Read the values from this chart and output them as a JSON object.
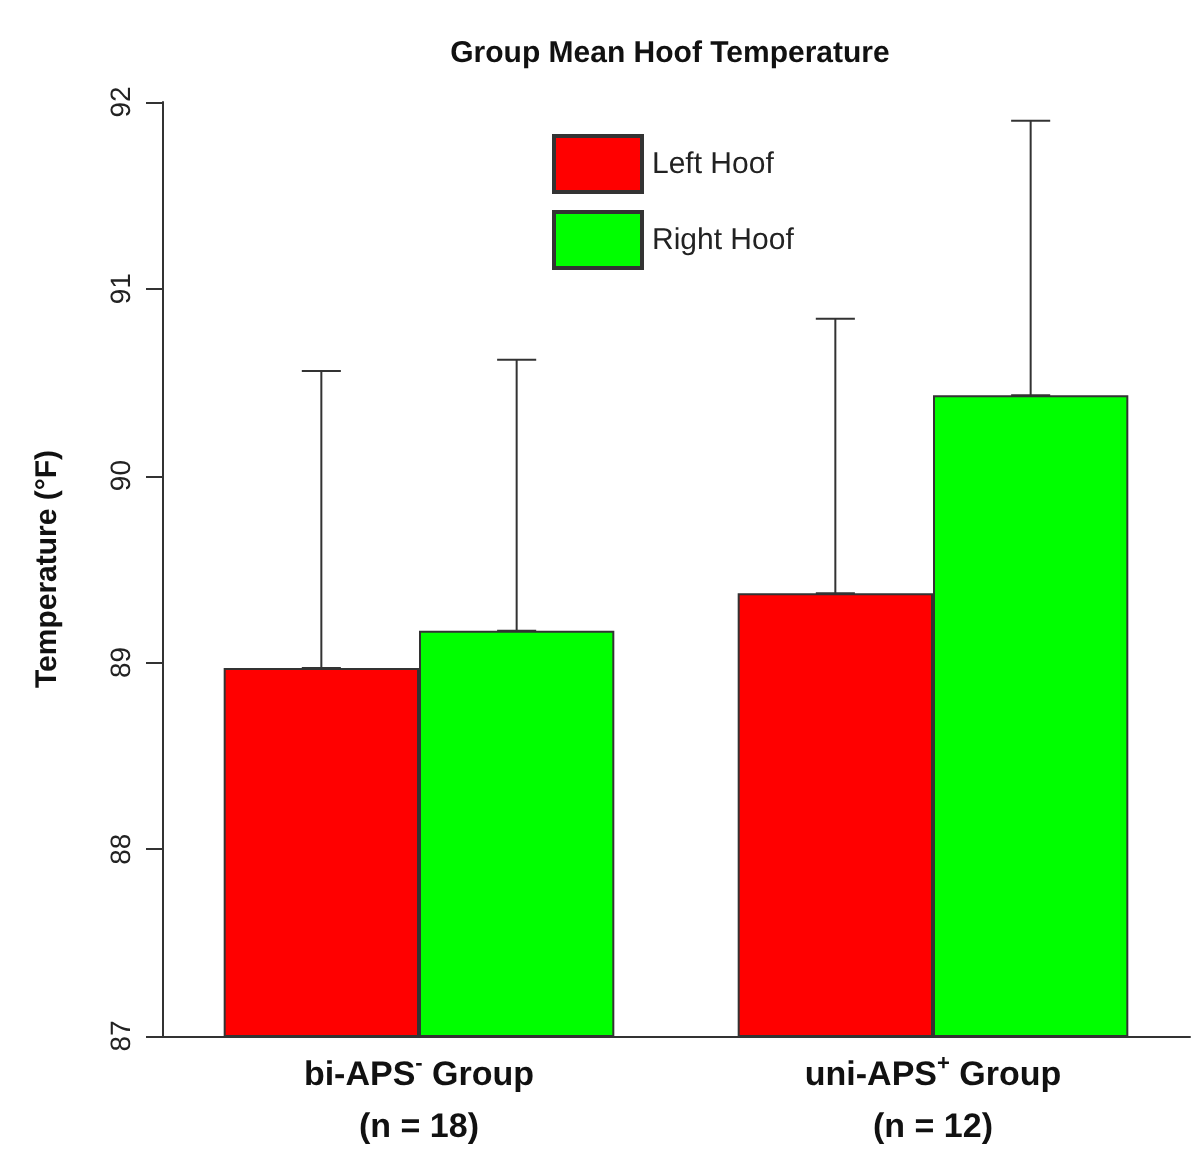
{
  "chart_data": {
    "type": "bar",
    "title": "Group Mean Hoof Temperature",
    "ylabel": "Temperature (°F)",
    "categories": [
      "bi-APS$^{-}$ Group\n(n = 18)",
      "uni-APS$^{+}$ Group\n(n = 12)"
    ],
    "series": [
      {
        "name": "Left Hoof",
        "color": "#ff0000",
        "values": [
          88.97,
          89.37
        ],
        "errors": [
          [
            88.97,
            90.56
          ],
          [
            89.37,
            90.84
          ]
        ]
      },
      {
        "name": "Right Hoof",
        "color": "#00ff00",
        "values": [
          89.17,
          90.43
        ],
        "errors": [
          [
            89.17,
            90.62
          ],
          [
            90.43,
            91.9
          ]
        ]
      }
    ],
    "ylim": [
      87,
      92
    ],
    "yticks": [
      87,
      88,
      89,
      90,
      91,
      92
    ],
    "grid": false,
    "legend": "top"
  }
}
